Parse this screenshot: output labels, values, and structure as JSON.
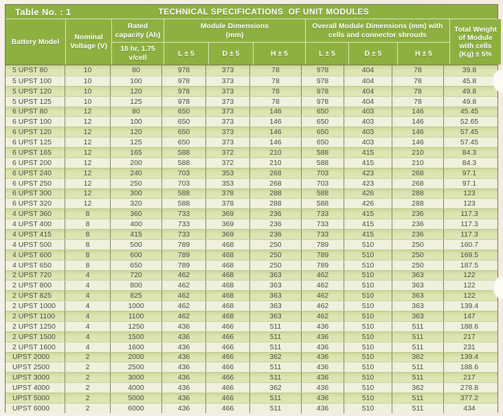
{
  "title_bar": {
    "label": "Table No. : 1",
    "title": "TECHNICAL SPECIFICATIONS  OF UNIT MODULES"
  },
  "table": {
    "headers": {
      "battery_model": "Battery Model",
      "nominal_voltage": "Nominal Voltage (V)",
      "rated_capacity": "Rated capacity (Ah)",
      "rated_capacity_sub": "10 hr, 1.75 v/cell",
      "module_dimensions": "Module Dimensions (mm)",
      "overall_dimensions": "Overall Module Dimensions (mm) with cells and connector shrouds",
      "dim_l": "L ± 5",
      "dim_d": "D ± 5",
      "dim_h": "H ± 5",
      "total_weight": "Total Weight of Module with cells (Kg) ± 5%"
    },
    "rows": [
      [
        "5 UPST 80",
        "10",
        "80",
        "978",
        "373",
        "78",
        "978",
        "404",
        "78",
        "39.8"
      ],
      [
        "5 UPST 100",
        "10",
        "100",
        "978",
        "373",
        "78",
        "978",
        "404",
        "78",
        "45.8"
      ],
      [
        "5 UPST 120",
        "10",
        "120",
        "978",
        "373",
        "78",
        "978",
        "404",
        "78",
        "49.8"
      ],
      [
        "5 UPST 125",
        "10",
        "125",
        "978",
        "373",
        "78",
        "978",
        "404",
        "78",
        "49.8"
      ],
      [
        "6 UPST 80",
        "12",
        "80",
        "650",
        "373",
        "146",
        "650",
        "403",
        "146",
        "45.45"
      ],
      [
        "6 UPST 100",
        "12",
        "100",
        "650",
        "373",
        "146",
        "650",
        "403",
        "146",
        "52.65"
      ],
      [
        "6 UPST 120",
        "12",
        "120",
        "650",
        "373",
        "146",
        "650",
        "403",
        "146",
        "57.45"
      ],
      [
        "6 UPST 125",
        "12",
        "125",
        "650",
        "373",
        "146",
        "650",
        "403",
        "146",
        "57.45"
      ],
      [
        "6 UPST 165",
        "12",
        "165",
        "588",
        "372",
        "210",
        "588",
        "415",
        "210",
        "84.3"
      ],
      [
        "6 UPST 200",
        "12",
        "200",
        "588",
        "372",
        "210",
        "588",
        "415",
        "210",
        "84.3"
      ],
      [
        "6 UPST 240",
        "12",
        "240",
        "703",
        "353",
        "268",
        "703",
        "423",
        "268",
        "97.1"
      ],
      [
        "6 UPST 250",
        "12",
        "250",
        "703",
        "353",
        "268",
        "703",
        "423",
        "268",
        "97.1"
      ],
      [
        "6 UPST 300",
        "12",
        "300",
        "588",
        "378",
        "288",
        "588",
        "426",
        "288",
        "123"
      ],
      [
        "6 UPST 320",
        "12",
        "320",
        "588",
        "378",
        "288",
        "588",
        "426",
        "288",
        "123"
      ],
      [
        "4 UPST 360",
        "8",
        "360",
        "733",
        "369",
        "236",
        "733",
        "415",
        "236",
        "117.3"
      ],
      [
        "4 UPST 400",
        "8",
        "400",
        "733",
        "369",
        "236",
        "733",
        "415",
        "236",
        "117.3"
      ],
      [
        "4 UPST 415",
        "8",
        "415",
        "733",
        "369",
        "236",
        "733",
        "415",
        "236",
        "117.3"
      ],
      [
        "4 UPST 500",
        "8",
        "500",
        "789",
        "468",
        "250",
        "789",
        "510",
        "250",
        "160.7"
      ],
      [
        "4 UPST 600",
        "8",
        "600",
        "789",
        "468",
        "250",
        "789",
        "510",
        "250",
        "169.5"
      ],
      [
        "4 UPST 650",
        "8",
        "650",
        "789",
        "468",
        "250",
        "789",
        "510",
        "250",
        "187.5"
      ],
      [
        "2 UPST 720",
        "4",
        "720",
        "462",
        "468",
        "363",
        "462",
        "510",
        "363",
        "122"
      ],
      [
        "2 UPST 800",
        "4",
        "800",
        "462",
        "468",
        "363",
        "462",
        "510",
        "363",
        "122"
      ],
      [
        "2 UPST 825",
        "4",
        "825",
        "462",
        "468",
        "363",
        "462",
        "510",
        "363",
        "122"
      ],
      [
        "2 UPST 1000",
        "4",
        "1000",
        "462",
        "468",
        "363",
        "462",
        "510",
        "363",
        "139.4"
      ],
      [
        "2 UPST 1100",
        "4",
        "1100",
        "462",
        "468",
        "363",
        "462",
        "510",
        "363",
        "147"
      ],
      [
        "2 UPST 1250",
        "4",
        "1250",
        "436",
        "466",
        "511",
        "436",
        "510",
        "511",
        "188.6"
      ],
      [
        "2 UPST 1500",
        "4",
        "1500",
        "436",
        "466",
        "511",
        "436",
        "510",
        "511",
        "217"
      ],
      [
        "2 UPST 1600",
        "4",
        "1600",
        "436",
        "466",
        "511",
        "436",
        "510",
        "511",
        "231"
      ],
      [
        "UPST 2000",
        "2",
        "2000",
        "436",
        "466",
        "362",
        "436",
        "510",
        "362",
        "139.4"
      ],
      [
        "UPST 2500",
        "2",
        "2500",
        "436",
        "466",
        "511",
        "436",
        "510",
        "511",
        "188.6"
      ],
      [
        "UPST 3000",
        "2",
        "3000",
        "436",
        "466",
        "511",
        "436",
        "510",
        "511",
        "217"
      ],
      [
        "UPST 4000",
        "2",
        "4000",
        "436",
        "466",
        "362",
        "436",
        "510",
        "362",
        "278.8"
      ],
      [
        "UPST 5000",
        "2",
        "5000",
        "436",
        "466",
        "511",
        "436",
        "510",
        "511",
        "377.2"
      ],
      [
        "UPST 6000",
        "2",
        "6000",
        "436",
        "466",
        "511",
        "436",
        "510",
        "511",
        "434"
      ]
    ]
  },
  "colors": {
    "header_green": "#8eb041",
    "row_stripe_dark": "#d7e1a9",
    "row_stripe_light": "#eff1dc",
    "data_text": "#4a4a40",
    "border_dark": "#6e7548",
    "header_separator": "#dfe5c2"
  }
}
